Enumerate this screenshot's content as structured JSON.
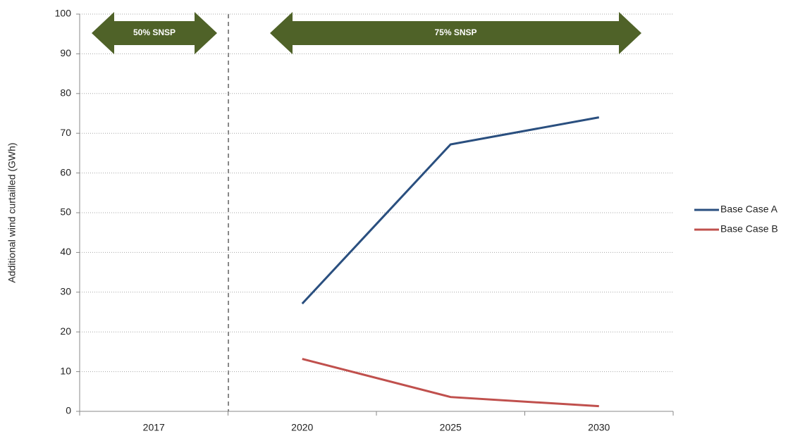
{
  "chart_data": {
    "type": "line",
    "y_label": "Additional wind curtailled (GWh)",
    "categories": [
      "2017",
      "2020",
      "2025",
      "2030"
    ],
    "series": [
      {
        "name": "Base Case A",
        "color": "#2a4f7f",
        "values": [
          null,
          27.1,
          67.2,
          74
        ]
      },
      {
        "name": "Base Case B",
        "color": "#c0504d",
        "values": [
          null,
          13.2,
          3.6,
          1.3
        ]
      }
    ],
    "ylim": [
      0,
      100
    ],
    "yticks": [
      0,
      10,
      20,
      30,
      40,
      50,
      60,
      70,
      80,
      90,
      100
    ],
    "grid": true,
    "legend": "right",
    "annotations": [
      "50% SNSP",
      "75% SNSP"
    ],
    "annotation_color": "#4f6228"
  }
}
